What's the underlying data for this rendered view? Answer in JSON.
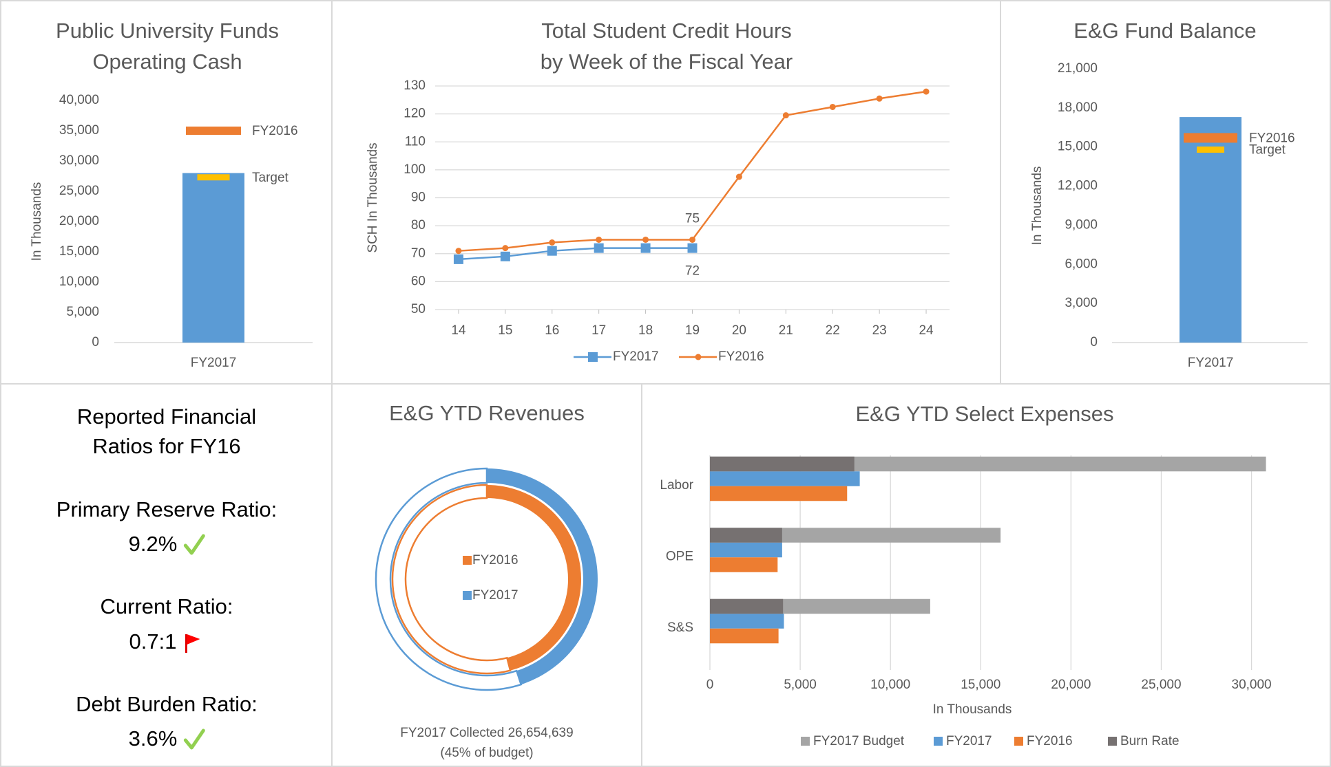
{
  "chart_data": [
    {
      "type": "bar",
      "title": [
        "Public University Funds",
        "Operating Cash"
      ],
      "ylabel": "In Thousands",
      "categories": [
        "FY2017"
      ],
      "series": [
        {
          "color": "#5b9bd5",
          "values": [
            28000
          ],
          "style": "bar"
        },
        {
          "name": "FY2016",
          "color": "#ed7d31",
          "values": [
            35000
          ],
          "style": "marker"
        },
        {
          "name": "Target",
          "color": "#ffc000",
          "values": [
            27300
          ],
          "style": "marker"
        }
      ],
      "ylim": [
        0,
        40000
      ],
      "yticks": [
        0,
        {
          "value": 5000,
          "label": "5,000"
        },
        {
          "value": 10000,
          "label": "10,000"
        },
        {
          "value": 15000,
          "label": "15,000"
        },
        {
          "value": 20000,
          "label": "20,000"
        },
        {
          "value": 25000,
          "label": "25,000"
        },
        {
          "value": 30000,
          "label": "30,000"
        },
        {
          "value": 35000,
          "label": "35,000"
        },
        {
          "value": 40000,
          "label": "40,000"
        }
      ],
      "grid": false
    },
    {
      "type": "line",
      "title": [
        "Total Student Credit Hours",
        "by Week of the Fiscal Year"
      ],
      "ylabel": "SCH In Thousands",
      "x": [
        14,
        15,
        16,
        17,
        18,
        19,
        20,
        21,
        22,
        23,
        24
      ],
      "series": [
        {
          "name": "FY2017",
          "color": "#5b9bd5",
          "marker": "square",
          "values": [
            68,
            69,
            71,
            72,
            72,
            72,
            null,
            null,
            null,
            null,
            null
          ],
          "value_labels": [
            null,
            null,
            null,
            null,
            null,
            "72",
            null,
            null,
            null,
            null,
            null
          ]
        },
        {
          "name": "FY2016",
          "color": "#ed7d31",
          "marker": "circle",
          "values": [
            71,
            72,
            74,
            75,
            75,
            75,
            97.5,
            119.5,
            122.5,
            125.5,
            128
          ],
          "value_labels": [
            null,
            null,
            null,
            null,
            null,
            "75",
            null,
            null,
            null,
            null,
            null
          ]
        }
      ],
      "xlim": [
        13.5,
        24.5
      ],
      "xticks": [
        14,
        15,
        16,
        17,
        18,
        19,
        20,
        21,
        22,
        23,
        24
      ],
      "ylim": [
        50,
        130
      ],
      "yticks": [
        50,
        60,
        70,
        80,
        90,
        100,
        110,
        120,
        130
      ],
      "grid": true,
      "legend": "bottom"
    },
    {
      "type": "bar",
      "title": [
        "E&G Fund Balance"
      ],
      "ylabel": "In Thousands",
      "categories": [
        "FY2017"
      ],
      "series": [
        {
          "color": "#5b9bd5",
          "values": [
            17300
          ],
          "style": "bar"
        },
        {
          "name": "FY2016",
          "color": "#ed7d31",
          "values": [
            15700
          ],
          "style": "marker"
        },
        {
          "name": "Target",
          "color": "#ffc000",
          "values": [
            14800
          ],
          "style": "marker"
        }
      ],
      "ylim": [
        0,
        21000
      ],
      "yticks": [
        0,
        {
          "value": 3000,
          "label": "3,000"
        },
        {
          "value": 6000,
          "label": "6,000"
        },
        {
          "value": 9000,
          "label": "9,000"
        },
        {
          "value": 12000,
          "label": "12,000"
        },
        {
          "value": 15000,
          "label": "15,000"
        },
        {
          "value": 18000,
          "label": "18,000"
        },
        {
          "value": 21000,
          "label": "21,000"
        }
      ],
      "grid": false
    },
    {
      "type": "donut",
      "title": [
        "E&G YTD Revenues"
      ],
      "series": [
        {
          "name": "FY2016",
          "color": "#ed7d31",
          "values": [
            46
          ]
        },
        {
          "name": "FY2017",
          "color": "#5b9bd5",
          "values": [
            45
          ]
        }
      ],
      "annotation": [
        "FY2017 Collected  26,654,639",
        "(45% of budget)"
      ]
    },
    {
      "type": "hbar",
      "title": [
        "E&G YTD Select Expenses"
      ],
      "xlabel": "In Thousands",
      "categories": [
        "Labor",
        "OPE",
        "S&S"
      ],
      "series": [
        {
          "name": "FY2017 Budget",
          "color": "#a5a5a5",
          "values": [
            30800,
            16100,
            12200
          ]
        },
        {
          "name": "FY2017",
          "color": "#5b9bd5",
          "values": [
            8300,
            4000,
            4100
          ]
        },
        {
          "name": "FY2016",
          "color": "#ed7d31",
          "values": [
            7600,
            3750,
            3800
          ]
        },
        {
          "name": "Burn Rate",
          "color": "#767171",
          "values": [
            8000,
            4000,
            4050
          ]
        }
      ],
      "xlim": [
        0,
        32000
      ],
      "xticks": [
        0,
        {
          "value": 5000,
          "label": "5,000"
        },
        {
          "value": 10000,
          "label": "10,000"
        },
        {
          "value": 15000,
          "label": "15,000"
        },
        {
          "value": 20000,
          "label": "20,000"
        },
        {
          "value": 25000,
          "label": "25,000"
        },
        {
          "value": 30000,
          "label": "30,000"
        }
      ],
      "grid": true,
      "legend": "bottom"
    }
  ],
  "ratios": {
    "title": [
      "Reported Financial",
      "Ratios for FY16"
    ],
    "items": [
      {
        "label": "Primary Reserve Ratio:",
        "value": "9.2%",
        "status": "check"
      },
      {
        "label": "Current Ratio:",
        "value": "0.7:1",
        "status": "flag"
      },
      {
        "label": "Debt Burden Ratio:",
        "value": "3.6%",
        "status": "check"
      }
    ]
  }
}
